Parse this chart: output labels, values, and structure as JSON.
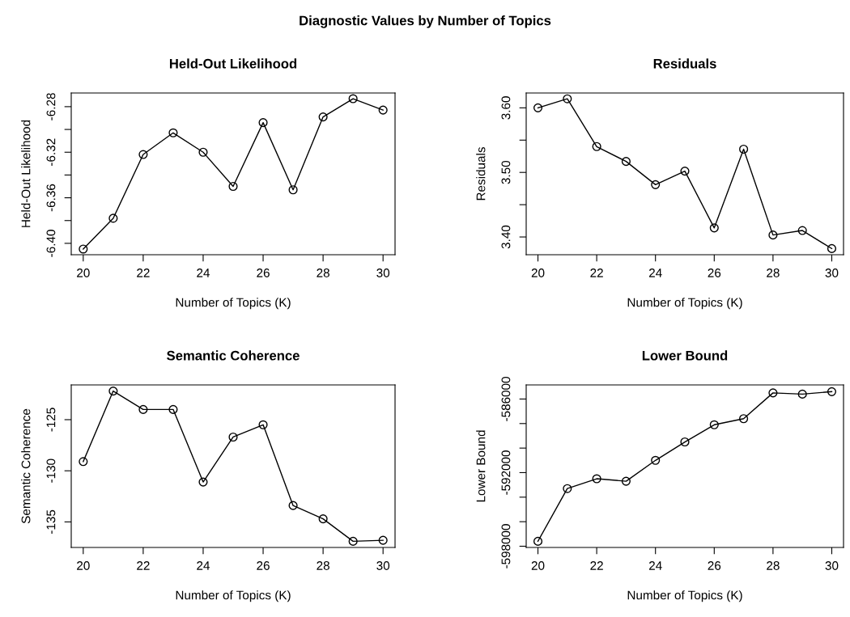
{
  "chart_data": [
    {
      "type": "other",
      "title": "Diagnostic Values by Number of Topics"
    },
    {
      "type": "line",
      "title": "Held-Out Likelihood",
      "xlabel": "Number of Topics (K)",
      "ylabel": "Held-Out Likelihood",
      "x": [
        20,
        21,
        22,
        23,
        24,
        25,
        26,
        27,
        28,
        29,
        30
      ],
      "marker": "circle",
      "grid": false,
      "xlim": [
        19.6,
        30.4
      ],
      "xticks": [
        20,
        22,
        24,
        26,
        28,
        30
      ],
      "ylim": [
        -6.41,
        -6.268
      ],
      "yticks": [
        {
          "value": -6.4,
          "label": "-6.40"
        },
        {
          "value": -6.38,
          "label": null
        },
        {
          "value": -6.36,
          "label": "-6.36"
        },
        {
          "value": -6.34,
          "label": null
        },
        {
          "value": -6.32,
          "label": "-6.32"
        },
        {
          "value": -6.3,
          "label": null
        },
        {
          "value": -6.28,
          "label": "-6.28"
        }
      ],
      "series": [
        {
          "color": "#000000",
          "values": [
            -6.405,
            -6.378,
            -6.322,
            -6.303,
            -6.32,
            -6.35,
            -6.294,
            -6.353,
            -6.289,
            -6.273,
            -6.283
          ]
        }
      ]
    },
    {
      "type": "line",
      "title": "Residuals",
      "xlabel": "Number of Topics (K)",
      "ylabel": "Residuals",
      "x": [
        20,
        21,
        22,
        23,
        24,
        25,
        26,
        27,
        28,
        29,
        30
      ],
      "marker": "circle",
      "grid": false,
      "xlim": [
        19.6,
        30.4
      ],
      "xticks": [
        20,
        22,
        24,
        26,
        28,
        30
      ],
      "ylim": [
        3.3725,
        3.623
      ],
      "yticks": [
        {
          "value": 3.4,
          "label": "3.40"
        },
        {
          "value": 3.45,
          "label": null
        },
        {
          "value": 3.5,
          "label": "3.50"
        },
        {
          "value": 3.55,
          "label": null
        },
        {
          "value": 3.6,
          "label": "3.60"
        }
      ],
      "series": [
        {
          "color": "#000000",
          "values": [
            3.6,
            3.614,
            3.54,
            3.517,
            3.481,
            3.502,
            3.414,
            3.536,
            3.403,
            3.41,
            3.382
          ]
        }
      ]
    },
    {
      "type": "line",
      "title": "Semantic Coherence",
      "xlabel": "Number of Topics (K)",
      "ylabel": "Semantic Coherence",
      "x": [
        20,
        21,
        22,
        23,
        24,
        25,
        26,
        27,
        28,
        29,
        30
      ],
      "marker": "circle",
      "grid": false,
      "xlim": [
        19.6,
        30.4
      ],
      "xticks": [
        20,
        22,
        24,
        26,
        28,
        30
      ],
      "ylim": [
        -137.5,
        -121.6
      ],
      "yticks": [
        -135,
        -130,
        -125
      ],
      "series": [
        {
          "color": "#000000",
          "values": [
            -129.1,
            -122.2,
            -124.0,
            -124.0,
            -131.1,
            -126.7,
            -125.5,
            -133.4,
            -134.7,
            -136.9,
            -136.8
          ]
        }
      ]
    },
    {
      "type": "line",
      "title": "Lower Bound",
      "xlabel": "Number of Topics (K)",
      "ylabel": "Lower Bound",
      "x": [
        20,
        21,
        22,
        23,
        24,
        25,
        26,
        27,
        28,
        29,
        30
      ],
      "marker": "circle",
      "grid": false,
      "xlim": [
        19.6,
        30.4
      ],
      "xticks": [
        20,
        22,
        24,
        26,
        28,
        30
      ],
      "ylim": [
        -598100,
        -584850
      ],
      "yticks": [
        {
          "value": -598000,
          "label": "-598000"
        },
        {
          "value": -596000,
          "label": null
        },
        {
          "value": -594000,
          "label": null
        },
        {
          "value": -592000,
          "label": "-592000"
        },
        {
          "value": -590000,
          "label": null
        },
        {
          "value": -588000,
          "label": null
        },
        {
          "value": -586000,
          "label": "-586000"
        }
      ],
      "series": [
        {
          "color": "#000000",
          "values": [
            -597600,
            -593300,
            -592500,
            -592700,
            -591000,
            -589500,
            -588100,
            -587600,
            -585500,
            -585600,
            -585400
          ]
        }
      ]
    }
  ]
}
